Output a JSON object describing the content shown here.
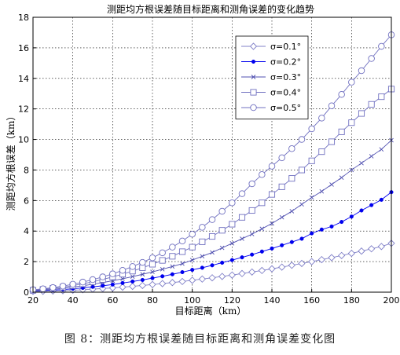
{
  "chart_data": {
    "type": "line",
    "title": "测距均方根误差随目标距离和测角误差的变化趋势",
    "xlabel": "目标距离（km）",
    "ylabel": "测距均方根误差（km）",
    "xlim": [
      20,
      200
    ],
    "ylim": [
      0,
      18
    ],
    "xticks": [
      20,
      40,
      60,
      80,
      100,
      120,
      140,
      160,
      180,
      200
    ],
    "yticks": [
      0,
      2,
      4,
      6,
      8,
      10,
      12,
      14,
      16,
      18
    ],
    "grid": true,
    "legend_position": "top-right",
    "x": [
      20,
      25,
      30,
      35,
      40,
      45,
      50,
      55,
      60,
      65,
      70,
      75,
      80,
      85,
      90,
      95,
      100,
      105,
      110,
      115,
      120,
      125,
      130,
      135,
      140,
      145,
      150,
      155,
      160,
      165,
      170,
      175,
      180,
      185,
      190,
      195,
      200
    ],
    "series": [
      {
        "name": "σ=0.1°",
        "marker": "diamond",
        "color": "#8080c8",
        "values": [
          0.05,
          0.06,
          0.08,
          0.1,
          0.13,
          0.16,
          0.2,
          0.24,
          0.28,
          0.33,
          0.38,
          0.44,
          0.5,
          0.56,
          0.63,
          0.7,
          0.78,
          0.86,
          0.94,
          1.03,
          1.12,
          1.22,
          1.32,
          1.42,
          1.53,
          1.64,
          1.76,
          1.88,
          2.0,
          2.13,
          2.26,
          2.4,
          2.54,
          2.69,
          2.84,
          2.99,
          3.2
        ]
      },
      {
        "name": "σ=0.2°",
        "marker": "dot",
        "color": "#0000ee",
        "values": [
          0.08,
          0.1,
          0.13,
          0.17,
          0.22,
          0.28,
          0.35,
          0.42,
          0.5,
          0.6,
          0.7,
          0.8,
          0.92,
          1.04,
          1.17,
          1.31,
          1.46,
          1.6,
          1.76,
          1.93,
          2.1,
          2.28,
          2.46,
          2.66,
          2.86,
          3.07,
          3.28,
          3.5,
          3.85,
          4.1,
          4.3,
          4.6,
          4.95,
          5.35,
          5.7,
          6.05,
          6.55
        ]
      },
      {
        "name": "σ=0.3°",
        "marker": "x",
        "color": "#5050b0",
        "values": [
          0.1,
          0.14,
          0.19,
          0.25,
          0.33,
          0.42,
          0.52,
          0.63,
          0.75,
          0.88,
          1.02,
          1.17,
          1.33,
          1.5,
          1.68,
          1.87,
          2.1,
          2.35,
          2.6,
          2.9,
          3.2,
          3.5,
          3.8,
          4.15,
          4.5,
          4.9,
          5.3,
          5.75,
          6.2,
          6.6,
          7.05,
          7.5,
          8.0,
          8.45,
          8.9,
          9.35,
          9.95
        ]
      },
      {
        "name": "σ=0.4°",
        "marker": "square",
        "color": "#7070c0",
        "values": [
          0.12,
          0.18,
          0.25,
          0.33,
          0.43,
          0.55,
          0.68,
          0.83,
          1.0,
          1.18,
          1.38,
          1.6,
          1.83,
          2.08,
          2.35,
          2.65,
          2.95,
          3.3,
          3.65,
          4.05,
          4.45,
          4.9,
          5.35,
          5.85,
          6.4,
          6.9,
          7.45,
          8.0,
          8.6,
          9.2,
          9.85,
          10.5,
          11.1,
          11.7,
          12.3,
          12.8,
          13.3
        ]
      },
      {
        "name": "σ=0.5°",
        "marker": "circle",
        "color": "#7070c0",
        "values": [
          0.16,
          0.22,
          0.3,
          0.4,
          0.52,
          0.66,
          0.82,
          1.0,
          1.2,
          1.43,
          1.68,
          1.95,
          2.25,
          2.58,
          2.95,
          3.35,
          3.8,
          4.25,
          4.75,
          5.3,
          5.85,
          6.45,
          7.1,
          7.7,
          8.25,
          8.8,
          9.4,
          10.0,
          10.7,
          11.4,
          12.2,
          12.95,
          13.75,
          14.5,
          15.3,
          16.1,
          16.85
        ]
      }
    ]
  },
  "caption": "图 8：测距均方根误差随目标距离和测角误差变化图"
}
